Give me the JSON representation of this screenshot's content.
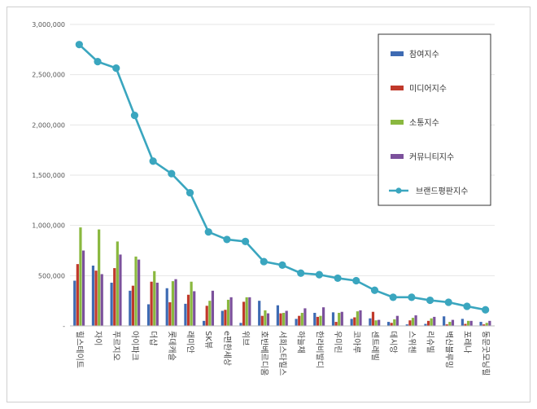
{
  "chart_data": {
    "type": "bar",
    "title": "",
    "xlabel": "",
    "ylabel": "",
    "ylim": [
      0,
      3000000
    ],
    "yticks": [
      0,
      500000,
      1000000,
      1500000,
      2000000,
      2500000,
      3000000
    ],
    "ytick_labels": [
      "-",
      "500,000",
      "1,000,000",
      "1,500,000",
      "2,000,000",
      "2,500,000",
      "3,000,000"
    ],
    "grid": true,
    "legend_position": "top-right",
    "categories": [
      "힐스테이트",
      "자이",
      "푸르지오",
      "아이파크",
      "더샵",
      "롯데캐슬",
      "래미안",
      "SK뷰",
      "e편한세상",
      "위브",
      "호반베르디움",
      "서희스타힐스",
      "하늘채",
      "한라비발디",
      "우미린",
      "코아루",
      "센트레빌",
      "데시앙",
      "스위첸",
      "리슈빌",
      "벽산블루밍",
      "포레나",
      "동문굿모닝힐"
    ],
    "series": [
      {
        "name": "참여지수",
        "kind": "bar",
        "color": "#3e6bb3",
        "values": [
          450000,
          600000,
          430000,
          350000,
          215000,
          375000,
          220000,
          50000,
          150000,
          30000,
          250000,
          205000,
          70000,
          130000,
          135000,
          70000,
          75000,
          40000,
          15000,
          20000,
          95000,
          70000,
          40000
        ]
      },
      {
        "name": "미디어지수",
        "kind": "bar",
        "color": "#c0392b",
        "values": [
          615000,
          550000,
          575000,
          400000,
          440000,
          235000,
          310000,
          200000,
          160000,
          240000,
          100000,
          125000,
          100000,
          90000,
          40000,
          85000,
          140000,
          30000,
          55000,
          50000,
          15000,
          20000,
          15000
        ]
      },
      {
        "name": "소통지수",
        "kind": "bar",
        "color": "#8ab83f",
        "values": [
          980000,
          960000,
          840000,
          690000,
          545000,
          445000,
          440000,
          250000,
          260000,
          285000,
          155000,
          130000,
          130000,
          100000,
          130000,
          145000,
          55000,
          65000,
          80000,
          75000,
          40000,
          50000,
          30000
        ]
      },
      {
        "name": "커뮤니티지수",
        "kind": "bar",
        "color": "#7c519c",
        "values": [
          750000,
          515000,
          710000,
          660000,
          430000,
          465000,
          345000,
          350000,
          285000,
          285000,
          125000,
          150000,
          175000,
          185000,
          140000,
          155000,
          60000,
          100000,
          105000,
          90000,
          60000,
          50000,
          50000
        ]
      },
      {
        "name": "브랜드평판지수",
        "kind": "line",
        "color": "#3aa6bf",
        "values": [
          2800000,
          2630000,
          2565000,
          2095000,
          1640000,
          1515000,
          1325000,
          935000,
          860000,
          840000,
          640000,
          605000,
          525000,
          510000,
          475000,
          450000,
          355000,
          285000,
          285000,
          255000,
          235000,
          195000,
          160000
        ]
      }
    ]
  }
}
